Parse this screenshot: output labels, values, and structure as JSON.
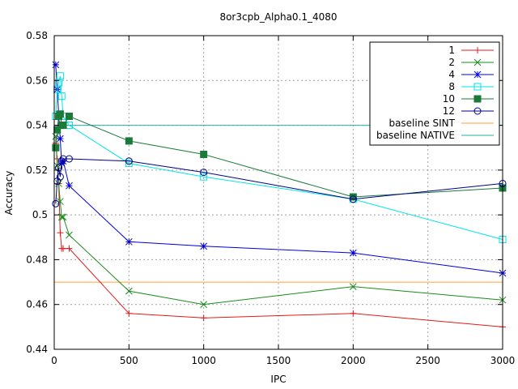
{
  "chart_data": {
    "type": "line",
    "title": "8or3cpb_Alpha0.1_4080",
    "xlabel": "IPC",
    "ylabel": "Accuracy",
    "xlim": [
      0,
      3000
    ],
    "ylim": [
      0.44,
      0.58
    ],
    "xticks": [
      0,
      500,
      1000,
      1500,
      2000,
      2500,
      3000
    ],
    "xtick_labels": [
      "0",
      "500",
      "1000",
      "1500",
      "2000",
      "2500",
      "3000"
    ],
    "yticks": [
      0.44,
      0.46,
      0.48,
      0.5,
      0.52,
      0.54,
      0.56,
      0.58
    ],
    "ytick_labels": [
      "0.44",
      "0.46",
      "0.48",
      "0.5",
      "0.52",
      "0.54",
      "0.56",
      "0.58"
    ],
    "grid": true,
    "legend_position": "top-right",
    "series": [
      {
        "name": "1",
        "color": "#e41a1c",
        "marker": "plus",
        "x": [
          10,
          20,
          30,
          40,
          50,
          60,
          100,
          500,
          1000,
          2000,
          3000
        ],
        "y": [
          0.532,
          0.525,
          0.514,
          0.492,
          0.485,
          0.485,
          0.485,
          0.456,
          0.454,
          0.456,
          0.45
        ]
      },
      {
        "name": "2",
        "color": "#1a8c1a",
        "marker": "x",
        "x": [
          10,
          20,
          30,
          40,
          50,
          60,
          100,
          500,
          1000,
          2000,
          3000
        ],
        "y": [
          0.535,
          0.522,
          0.514,
          0.506,
          0.499,
          0.499,
          0.491,
          0.466,
          0.46,
          0.468,
          0.462
        ]
      },
      {
        "name": "4",
        "color": "#0000dd",
        "marker": "star",
        "x": [
          10,
          20,
          30,
          40,
          50,
          60,
          100,
          500,
          1000,
          2000,
          3000
        ],
        "y": [
          0.567,
          0.556,
          0.545,
          0.534,
          0.523,
          0.524,
          0.513,
          0.488,
          0.486,
          0.483,
          0.474
        ]
      },
      {
        "name": "8",
        "color": "#00e5e5",
        "marker": "square-open",
        "x": [
          10,
          20,
          30,
          40,
          50,
          60,
          100,
          500,
          1000,
          2000,
          3000
        ],
        "y": [
          0.544,
          0.556,
          0.559,
          0.562,
          0.553,
          0.544,
          0.54,
          0.523,
          0.517,
          0.507,
          0.489
        ]
      },
      {
        "name": "10",
        "color": "#1a7a3a",
        "marker": "square-filled",
        "x": [
          10,
          20,
          30,
          40,
          50,
          60,
          100,
          500,
          1000,
          2000,
          3000
        ],
        "y": [
          0.53,
          0.538,
          0.544,
          0.545,
          0.54,
          0.54,
          0.544,
          0.533,
          0.527,
          0.508,
          0.512
        ]
      },
      {
        "name": "12",
        "color": "#00008b",
        "marker": "circle-open",
        "x": [
          10,
          20,
          30,
          40,
          50,
          60,
          100,
          500,
          1000,
          2000,
          3000
        ],
        "y": [
          0.505,
          0.515,
          0.521,
          0.517,
          0.524,
          0.525,
          0.525,
          0.524,
          0.519,
          0.507,
          0.514
        ]
      }
    ],
    "baselines": [
      {
        "name": "baseline SINT",
        "color": "#ffa033",
        "y": 0.47
      },
      {
        "name": "baseline NATIVE",
        "color": "#20b2aa",
        "y": 0.54
      }
    ]
  }
}
